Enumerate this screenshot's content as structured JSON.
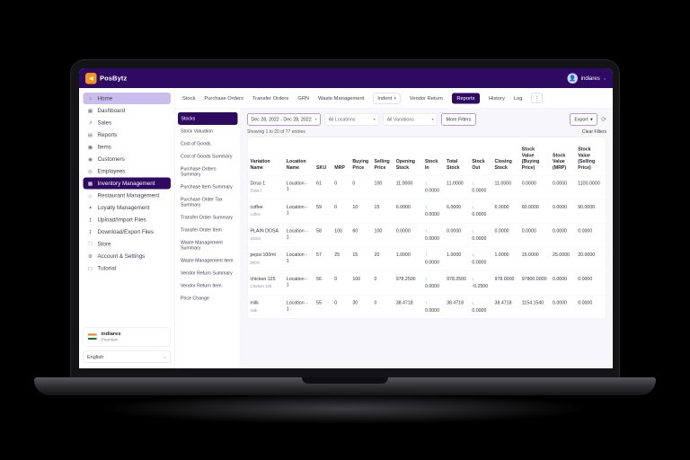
{
  "header": {
    "brand": "PosBytz",
    "logo_glyph": "◀",
    "user": "indiares",
    "user_caret": "⌄",
    "avatar_glyph": "👤"
  },
  "sidebar": {
    "items": [
      {
        "label": "Home",
        "icon": "⌂",
        "icon_name": "home-icon",
        "state": "highlight"
      },
      {
        "label": "Dashboard",
        "icon": "▦",
        "icon_name": "dashboard-icon",
        "state": ""
      },
      {
        "label": "Sales",
        "icon": "↗",
        "icon_name": "sales-icon",
        "state": ""
      },
      {
        "label": "Reports",
        "icon": "▤",
        "icon_name": "reports-icon",
        "state": ""
      },
      {
        "label": "Items",
        "icon": "▣",
        "icon_name": "items-icon",
        "state": ""
      },
      {
        "label": "Customers",
        "icon": "◉",
        "icon_name": "customers-icon",
        "state": ""
      },
      {
        "label": "Employees",
        "icon": "◎",
        "icon_name": "employees-icon",
        "state": ""
      },
      {
        "label": "Inventory Management",
        "icon": "▩",
        "icon_name": "inventory-icon",
        "state": "active"
      },
      {
        "label": "Restaurant Management",
        "icon": "♨",
        "icon_name": "restaurant-icon",
        "state": ""
      },
      {
        "label": "Loyalty Management",
        "icon": "✦",
        "icon_name": "loyalty-icon",
        "state": ""
      },
      {
        "label": "Upload/Import Files",
        "icon": "↥",
        "icon_name": "upload-icon",
        "state": ""
      },
      {
        "label": "Download/Export Files",
        "icon": "↧",
        "icon_name": "download-icon",
        "state": ""
      },
      {
        "label": "Store",
        "icon": "⛶",
        "icon_name": "store-icon",
        "state": ""
      },
      {
        "label": "Account & Settings",
        "icon": "⚙",
        "icon_name": "settings-icon",
        "state": ""
      },
      {
        "label": "Tutorial",
        "icon": "▢",
        "icon_name": "tutorial-icon",
        "state": ""
      }
    ],
    "account": {
      "name": "indiares",
      "plan": "Premium"
    },
    "language": {
      "value": "English",
      "caret": "⌄"
    }
  },
  "tabs": [
    {
      "label": "Stock",
      "style": "link"
    },
    {
      "label": "Purchase Orders",
      "style": "link"
    },
    {
      "label": "Transfer Orders",
      "style": "link"
    },
    {
      "label": "GRN",
      "style": "link"
    },
    {
      "label": "Waste Management",
      "style": "link"
    },
    {
      "label": "Indent",
      "style": "outline",
      "caret": "▾"
    },
    {
      "label": "Vendor Return",
      "style": "link"
    },
    {
      "label": "Reports",
      "style": "active"
    },
    {
      "label": "History",
      "style": "link"
    },
    {
      "label": "Log",
      "style": "link"
    },
    {
      "label": "⋮",
      "style": "more"
    }
  ],
  "reports_menu": [
    {
      "label": "Stocks",
      "state": "active"
    },
    {
      "label": "Stock Valuation",
      "state": ""
    },
    {
      "label": "Cost of Goods",
      "state": ""
    },
    {
      "label": "Cost of Goods Summary",
      "state": ""
    },
    {
      "label": "Purchase Orders Summary",
      "state": ""
    },
    {
      "label": "Purchase Item Summary",
      "state": ""
    },
    {
      "label": "Purchase Order Tax Summary",
      "state": ""
    },
    {
      "label": "Transfer Order Summary",
      "state": ""
    },
    {
      "label": "Transfer Order Item",
      "state": ""
    },
    {
      "label": "Waste Management Summary",
      "state": ""
    },
    {
      "label": "Waste Management Item",
      "state": ""
    },
    {
      "label": "Vendor Return Summary",
      "state": ""
    },
    {
      "label": "Vendor Return Item",
      "state": ""
    },
    {
      "label": "Price Change",
      "state": ""
    }
  ],
  "filters": {
    "date_range": "Dec 28, 2022 - Dec 28, 2022",
    "date_caret": "▾",
    "locations": "All Locations",
    "variations": "All Variations",
    "more_filters": "More Filters",
    "export_label": "Export",
    "export_caret": "▾",
    "refresh_glyph": "⟳",
    "clear_label": "Clear Filters"
  },
  "table": {
    "showing": "Showing 1 to 20 of 77 entries",
    "icons": {
      "up_arrow": "↑",
      "down_arrow": "↓"
    },
    "columns": [
      "Variation Name",
      "Location Name",
      "SKU",
      "MRP",
      "Buying Price",
      "Selling Price",
      "Opening Stock",
      "Stock In",
      "Total Stock",
      "Stock Out",
      "Closing Stock",
      "Stock Value (Buying Price)",
      "Stock Value (MRP)",
      "Stock Value (Selling Price)"
    ],
    "rows": [
      {
        "name": "Dosa 1",
        "sub": "Dosa 1",
        "location": "Location - 1",
        "sku": "61",
        "mrp": "0",
        "buying_price": "0",
        "selling_price": "100",
        "opening_stock": "11.0000",
        "stock_in": "0.0000",
        "total_stock": "11.0000",
        "stock_out": "0.0000",
        "closing_stock": "11.0000",
        "stock_value_buying": "0.0000",
        "stock_value_mrp": "0.0000",
        "stock_value_selling": "1100.0000"
      },
      {
        "name": "coffee",
        "sub": "coffee",
        "location": "Location - 1",
        "sku": "59",
        "mrp": "0",
        "buying_price": "10",
        "selling_price": "15",
        "opening_stock": "6.0000",
        "stock_in": "0.0000",
        "total_stock": "6.0000",
        "stock_out": "0.0000",
        "closing_stock": "6.0000",
        "stock_value_buying": "60.0000",
        "stock_value_mrp": "0.0000",
        "stock_value_selling": "90.0000"
      },
      {
        "name": "PLAIN DOSA",
        "sub": "DOSA",
        "location": "Location - 1",
        "sku": "58",
        "mrp": "100",
        "buying_price": "60",
        "selling_price": "100",
        "opening_stock": "0.0000",
        "stock_in": "0.0000",
        "total_stock": "0.0000",
        "stock_out": "0.0000",
        "closing_stock": "0.0000",
        "stock_value_buying": "0.0000",
        "stock_value_mrp": "0.0000",
        "stock_value_selling": "0.0000"
      },
      {
        "name": "pepsi 100ml",
        "sub": "pepsi",
        "location": "Location - 1",
        "sku": "57",
        "mrp": "25",
        "buying_price": "15",
        "selling_price": "20",
        "opening_stock": "1.0000",
        "stock_in": "0.0000",
        "total_stock": "1.0000",
        "stock_out": "0.0000",
        "closing_stock": "1.0000",
        "stock_value_buying": "15.0000",
        "stock_value_mrp": "25.0000",
        "stock_value_selling": "20.0000"
      },
      {
        "name": "chicken 125",
        "sub": "Chicken 125",
        "location": "Location - 1",
        "sku": "56",
        "mrp": "0",
        "buying_price": "100",
        "selling_price": "0",
        "opening_stock": "978.2500",
        "stock_in": "0.0000",
        "total_stock": "978.2500",
        "stock_out": "-0.2500",
        "closing_stock": "978.0000",
        "stock_value_buying": "97800.0000",
        "stock_value_mrp": "0.0000",
        "stock_value_selling": "0.0000"
      },
      {
        "name": "milk",
        "sub": "milk",
        "location": "Location - 1",
        "sku": "55",
        "mrp": "0",
        "buying_price": "30",
        "selling_price": "0",
        "opening_stock": "38.4718",
        "stock_in": "0.0000",
        "total_stock": "38.4718",
        "stock_out": "0.0000",
        "closing_stock": "38.4718",
        "stock_value_buying": "1154.1540",
        "stock_value_mrp": "0.0000",
        "stock_value_selling": "0.0000"
      }
    ]
  }
}
